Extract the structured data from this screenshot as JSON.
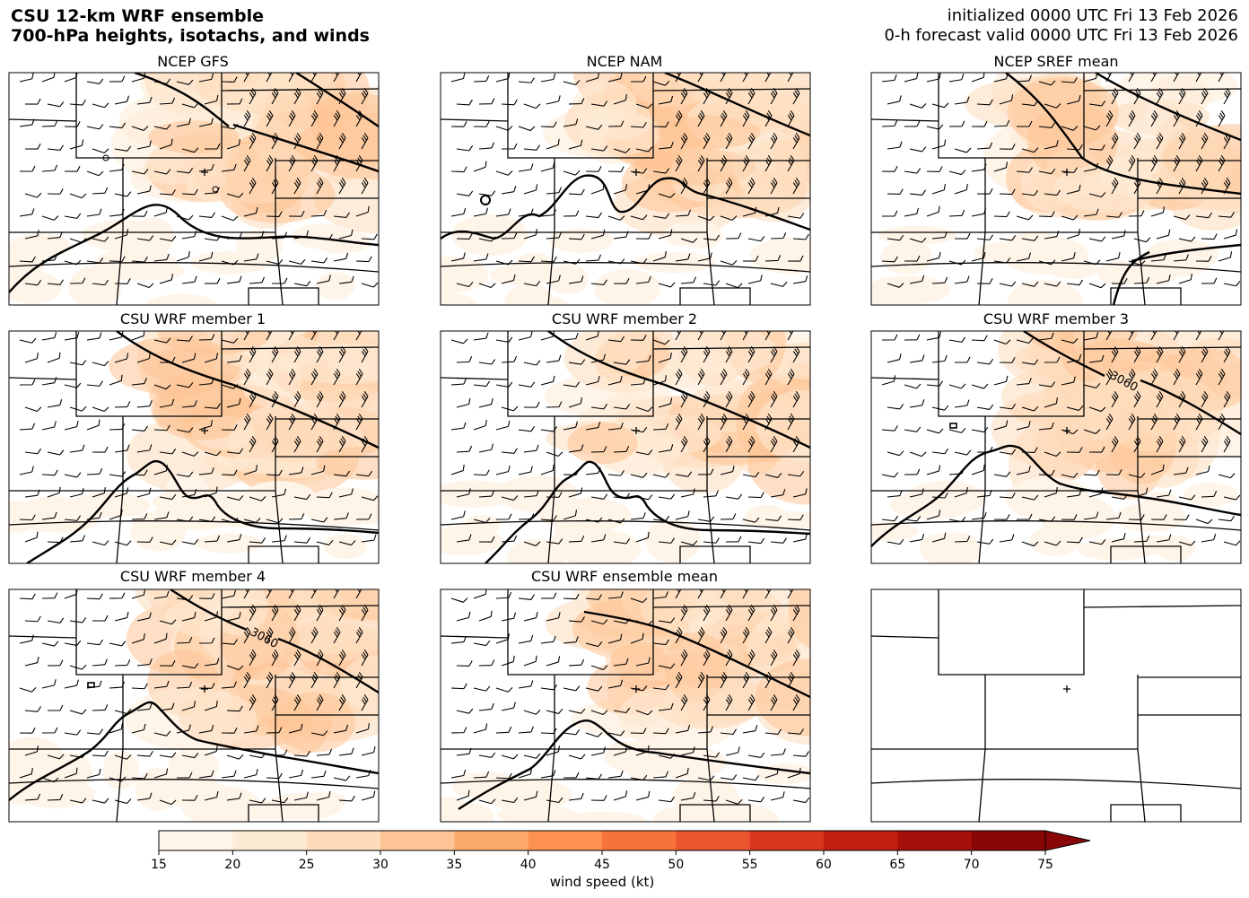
{
  "header": {
    "title_line1": "CSU 12-km WRF ensemble",
    "title_line2": "700-hPa heights, isotachs, and winds",
    "init_line": "initialized 0000 UTC Fri 13 Feb 2026",
    "valid_line": "0-h forecast valid 0000 UTC Fri 13 Feb 2026"
  },
  "panels": [
    {
      "title": "NCEP GFS",
      "contour_label": ""
    },
    {
      "title": "NCEP NAM",
      "contour_label": ""
    },
    {
      "title": "NCEP SREF mean",
      "contour_label": ""
    },
    {
      "title": "CSU WRF member 1",
      "contour_label": ""
    },
    {
      "title": "CSU WRF member 2",
      "contour_label": ""
    },
    {
      "title": "CSU WRF member 3",
      "contour_label": "3060"
    },
    {
      "title": "CSU WRF member 4",
      "contour_label": "3060"
    },
    {
      "title": "CSU WRF ensemble mean",
      "contour_label": ""
    },
    {
      "title": "",
      "contour_label": ""
    }
  ],
  "colorbar": {
    "label": "wind speed (kt)",
    "ticks": [
      "15",
      "20",
      "25",
      "30",
      "35",
      "40",
      "45",
      "50",
      "55",
      "60",
      "65",
      "70",
      "75"
    ],
    "colors": [
      "#fff4e8",
      "#feebd6",
      "#fddcbc",
      "#fdc596",
      "#fdab6d",
      "#fc9150",
      "#f6743c",
      "#ea5530",
      "#d7361f",
      "#c21f12",
      "#a6100a",
      "#8a0707"
    ],
    "extend": "max"
  }
}
